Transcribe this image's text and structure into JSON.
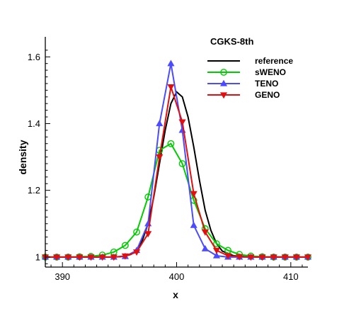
{
  "chart_data": {
    "type": "line",
    "title": "CGKS-8th",
    "xlabel": "x",
    "ylabel": "density",
    "xlim": [
      388.5,
      411.5
    ],
    "ylim": [
      0.97,
      1.66
    ],
    "x_ticks": [
      390,
      400,
      410
    ],
    "y_ticks": [
      1,
      1.2,
      1.4,
      1.6
    ],
    "x_tick_labels": [
      "390",
      "400",
      "410"
    ],
    "y_tick_labels": [
      "1",
      "1.2",
      "1.4",
      "1.6"
    ],
    "legend_position": "top-right",
    "grid": false,
    "series": [
      {
        "name": "reference",
        "color": "#000000",
        "marker": "none",
        "x": [
          388.5,
          394.0,
          395.0,
          395.5,
          396.0,
          396.5,
          397.0,
          397.5,
          398.0,
          398.5,
          399.0,
          399.5,
          400.0,
          400.5,
          401.0,
          401.5,
          402.0,
          402.5,
          403.0,
          403.5,
          404.0,
          405.0,
          406.0,
          411.5
        ],
        "values": [
          1.0,
          1.0,
          1.001,
          1.003,
          1.008,
          1.02,
          1.05,
          1.1,
          1.18,
          1.28,
          1.38,
          1.46,
          1.495,
          1.48,
          1.42,
          1.33,
          1.23,
          1.14,
          1.08,
          1.04,
          1.018,
          1.004,
          1.001,
          1.0
        ]
      },
      {
        "name": "sWENO",
        "color": "#00cc00",
        "marker": "circle",
        "x": [
          388.5,
          389.5,
          390.5,
          391.5,
          392.5,
          393.5,
          394.5,
          395.5,
          396.5,
          397.5,
          398.5,
          399.5,
          400.5,
          401.5,
          402.5,
          403.5,
          404.5,
          405.5,
          406.5,
          407.5,
          408.5,
          409.5,
          410.5,
          411.5
        ],
        "values": [
          1.0,
          1.0,
          1.0,
          1.001,
          1.002,
          1.006,
          1.015,
          1.035,
          1.075,
          1.18,
          1.32,
          1.34,
          1.28,
          1.17,
          1.085,
          1.04,
          1.02,
          1.008,
          1.003,
          1.001,
          1.0,
          1.0,
          1.0,
          1.0
        ]
      },
      {
        "name": "TENO",
        "color": "#4b4bff",
        "marker": "triangle-up",
        "x": [
          388.5,
          389.5,
          390.5,
          391.5,
          392.5,
          393.5,
          394.5,
          395.5,
          396.5,
          397.5,
          398.5,
          399.5,
          400.5,
          401.5,
          402.5,
          403.5,
          404.5,
          405.5,
          406.5,
          407.5,
          408.5,
          409.5,
          410.5,
          411.5
        ],
        "values": [
          1.0,
          1.0,
          1.0,
          1.0,
          1.0,
          1.0,
          1.0,
          1.002,
          1.02,
          1.1,
          1.4,
          1.58,
          1.38,
          1.095,
          1.025,
          1.004,
          1.0,
          1.0,
          1.0,
          1.0,
          1.0,
          1.0,
          1.0,
          1.0
        ]
      },
      {
        "name": "GENO",
        "color": "#e01010",
        "marker": "triangle-down",
        "x": [
          388.5,
          389.5,
          390.5,
          391.5,
          392.5,
          393.5,
          394.5,
          395.5,
          396.5,
          397.5,
          398.5,
          399.5,
          400.5,
          401.5,
          402.5,
          403.5,
          404.5,
          405.5,
          406.5,
          407.5,
          408.5,
          409.5,
          410.5,
          411.5
        ],
        "values": [
          1.0,
          1.0,
          1.0,
          1.0,
          1.0,
          1.0,
          1.0,
          1.003,
          1.015,
          1.07,
          1.3,
          1.51,
          1.405,
          1.19,
          1.075,
          1.02,
          1.004,
          1.001,
          1.0,
          1.0,
          1.0,
          1.0,
          1.0,
          1.0
        ]
      }
    ]
  }
}
